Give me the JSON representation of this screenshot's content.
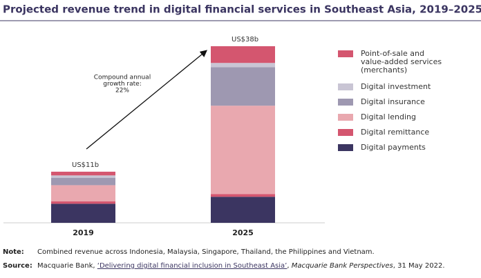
{
  "chart_data": {
    "type": "stacked-bar",
    "title": "Projected revenue trend in digital financial services in Southeast Asia, 2019–2025",
    "categories": [
      "2019",
      "2025"
    ],
    "series": [
      {
        "name": "Digital payments",
        "color": "#3b3561",
        "values": [
          4.1,
          5.6
        ]
      },
      {
        "name": "Digital remittance",
        "color": "#d4566f",
        "values": [
          0.5,
          0.6
        ]
      },
      {
        "name": "Digital lending",
        "color": "#e9a8af",
        "values": [
          3.5,
          19
        ]
      },
      {
        "name": "Digital insurance",
        "color": "#9e98b1",
        "values": [
          1.6,
          8.3
        ]
      },
      {
        "name": "Digital investment",
        "color": "#c9c5d4",
        "values": [
          0.5,
          0.9
        ]
      },
      {
        "name": "Point-of-sale and value-added services (merchants)",
        "color": "#d4566f",
        "values": [
          0.8,
          3.6
        ]
      }
    ],
    "totals": {
      "values": [
        11,
        38
      ],
      "value_labels": [
        "US$11b",
        "US$38b"
      ]
    },
    "annotation": [
      "Compound annual",
      "growth rate:",
      "22%"
    ],
    "note": {
      "label": "Note:",
      "text": "Combined revenue across Indonesia, Malaysia, Singapore, Thailand, the Philippines and Vietnam."
    },
    "source": {
      "label": "Source:",
      "parts": [
        "Macquarie Bank, ",
        "‘Delivering digital financial inclusion in Southeast Asia’",
        ", ",
        "Macquarie Bank Perspectives",
        ", 31 May 2022."
      ]
    }
  }
}
